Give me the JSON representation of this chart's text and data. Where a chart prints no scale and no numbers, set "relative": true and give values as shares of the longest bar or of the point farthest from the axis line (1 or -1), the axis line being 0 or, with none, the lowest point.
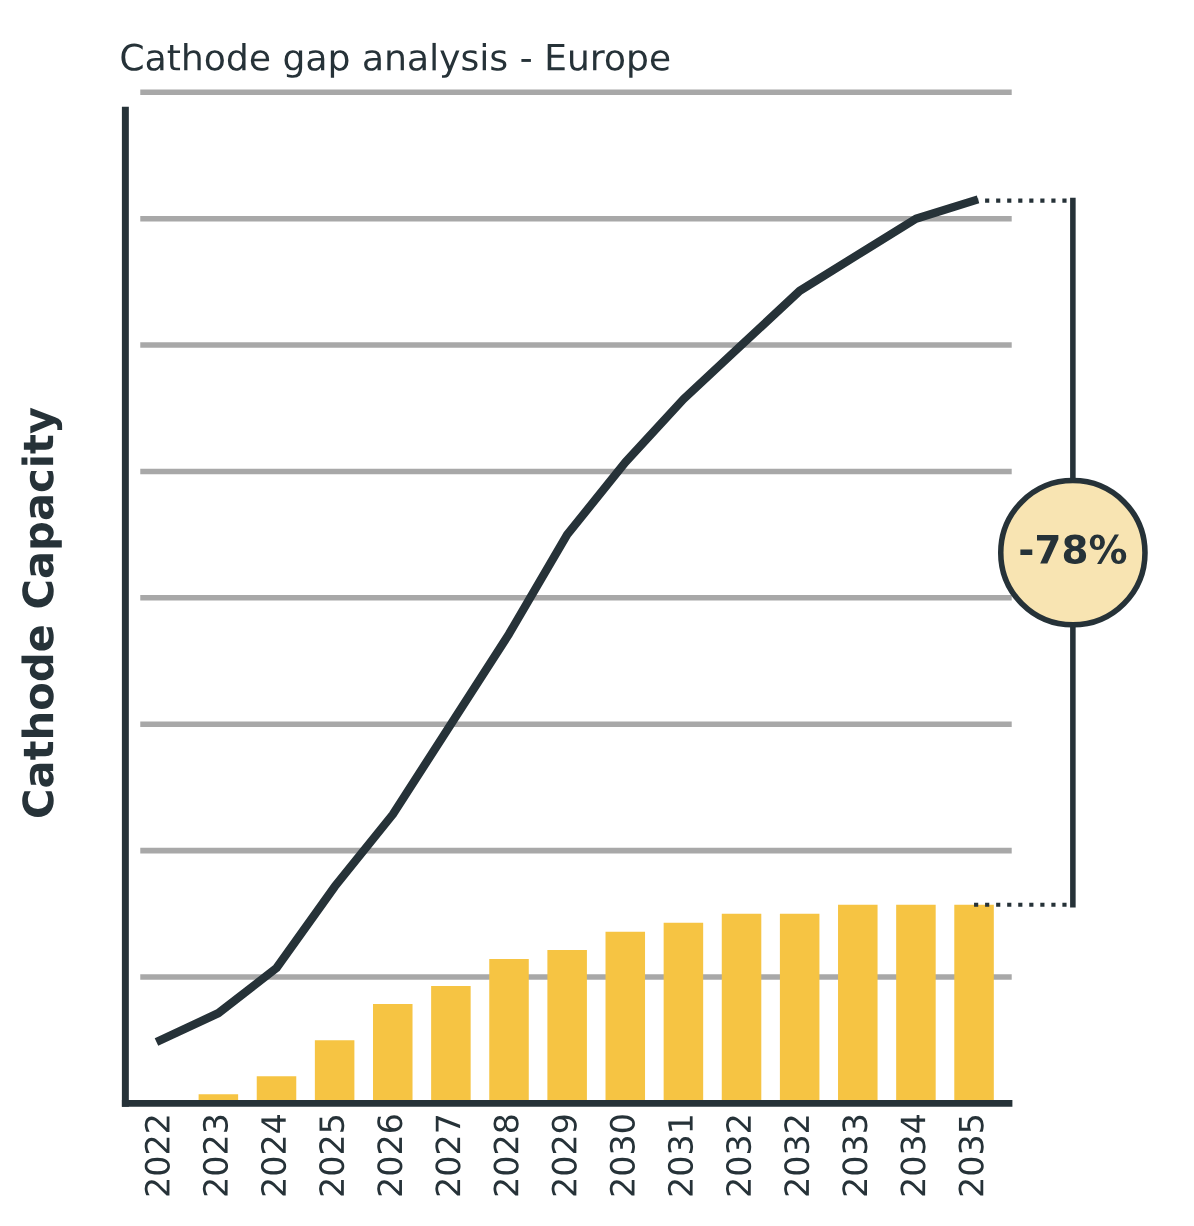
{
  "chart_data": {
    "type": "bar",
    "title": "Cathode gap analysis - Europe",
    "ylabel": "Cathode Capacity",
    "relative": true,
    "grid": "y",
    "categories": [
      "2022",
      "2023",
      "2024",
      "2025",
      "2026",
      "2027",
      "2028",
      "2029",
      "2030",
      "2031",
      "2032",
      "2032",
      "2033",
      "2034",
      "2035"
    ],
    "series": [
      {
        "type": "line",
        "color": "#263238",
        "values": [
          0.07,
          0.1,
          0.15,
          0.24,
          0.32,
          0.42,
          0.52,
          0.63,
          0.71,
          0.78,
          0.84,
          0.9,
          0.94,
          0.98,
          1.0
        ]
      },
      {
        "color": "#f6c443",
        "values": [
          null,
          0.01,
          0.03,
          0.07,
          0.11,
          0.13,
          0.16,
          0.17,
          0.19,
          0.2,
          0.21,
          0.21,
          0.22,
          0.22,
          0.22
        ]
      }
    ],
    "annotations": [
      "-78%"
    ]
  }
}
